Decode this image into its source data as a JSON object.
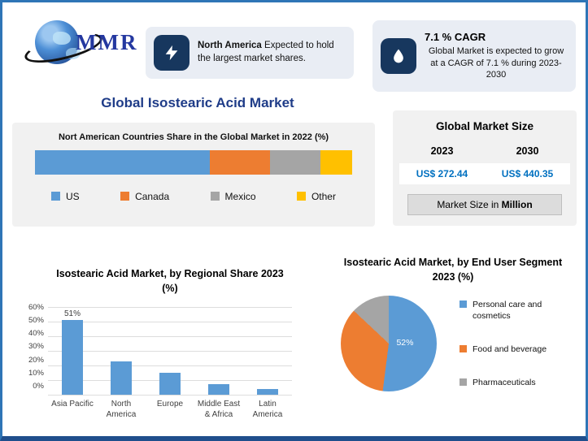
{
  "logo": {
    "text": "MMR"
  },
  "cards": [
    {
      "highlight": "North America",
      "text": " Expected to hold the largest market shares."
    },
    {
      "title": "7.1 % CAGR",
      "text": "Global Market is expected to grow at a CAGR of 7.1 % during 2023-2030"
    }
  ],
  "page_title": "Global Isostearic Acid Market",
  "market_size": {
    "title": "Global Market Size",
    "col1": "2023",
    "col2": "2030",
    "val1": "US$ 272.44",
    "val2": "US$ 440.35",
    "note_prefix": "Market Size in ",
    "note_bold": "Million"
  },
  "colors": {
    "title_blue": "#1F3C88",
    "value_blue": "#0070C0",
    "icon_navy": "#17375E",
    "series_blue": "#5B9BD5",
    "series_orange": "#ED7D31",
    "series_gray": "#A5A5A5",
    "series_yellow": "#FFC000"
  },
  "chart_data": [
    {
      "type": "bar",
      "variant": "stacked-horizontal",
      "title": "Nort American Countries Share in the Global Market in 2022 (%)",
      "categories": [
        "US",
        "Canada",
        "Mexico",
        "Other"
      ],
      "values": [
        55,
        19,
        16,
        10
      ],
      "colors": [
        "#5B9BD5",
        "#ED7D31",
        "#A5A5A5",
        "#FFC000"
      ],
      "legend_position": "bottom"
    },
    {
      "type": "bar",
      "title": "Isostearic Acid Market, by Regional Share 2023 (%)",
      "categories": [
        "Asia Pacific",
        "North America",
        "Europe",
        "Middle East & Africa",
        "Latin America"
      ],
      "values": [
        51,
        23,
        15,
        7,
        4
      ],
      "bar_labels": [
        "51%",
        "",
        "",
        "",
        ""
      ],
      "ylim": [
        0,
        60
      ],
      "yticks": [
        "60%",
        "50%",
        "40%",
        "30%",
        "20%",
        "10%",
        "0%"
      ],
      "color": "#5B9BD5",
      "grid": true
    },
    {
      "type": "pie",
      "title": "Isostearic Acid Market, by End User Segment 2023 (%)",
      "categories": [
        "Personal care and cosmetics",
        "Food and beverage",
        "Pharmaceuticals"
      ],
      "values": [
        52,
        35,
        13
      ],
      "colors": [
        "#5B9BD5",
        "#ED7D31",
        "#A5A5A5"
      ],
      "slice_label": "52%",
      "legend_position": "right"
    }
  ]
}
